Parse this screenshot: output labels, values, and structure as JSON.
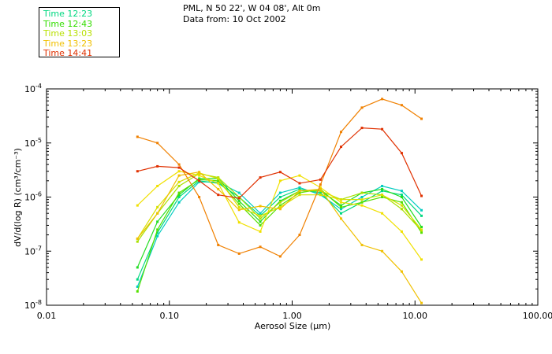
{
  "header": {
    "location": "PML, N 50 22', W 04 08', Alt 0m",
    "date": "Data from: 10 Oct 2002"
  },
  "chart_data": {
    "type": "line",
    "xscale": "log",
    "yscale": "log",
    "xlabel": "Aerosol Size (μm)",
    "ylabel": "dV/d(log R) (cm³/cm⁻³)",
    "xlim": [
      0.01,
      100
    ],
    "ylim": [
      1e-08,
      0.0001
    ],
    "xticks": [
      {
        "value": 0.01,
        "label": "0.01"
      },
      {
        "value": 0.1,
        "label": "0.10"
      },
      {
        "value": 1,
        "label": "1.00"
      },
      {
        "value": 10,
        "label": "10.00"
      },
      {
        "value": 100,
        "label": "100.00"
      }
    ],
    "yticks": [
      {
        "value": 1e-08,
        "base": "10",
        "exp": "-8"
      },
      {
        "value": 1e-07,
        "base": "10",
        "exp": "-7"
      },
      {
        "value": 1e-06,
        "base": "10",
        "exp": "-6"
      },
      {
        "value": 1e-05,
        "base": "10",
        "exp": "-5"
      },
      {
        "value": 0.0001,
        "base": "10",
        "exp": "-4"
      }
    ],
    "x": [
      0.055,
      0.08,
      0.12,
      0.175,
      0.25,
      0.37,
      0.55,
      0.8,
      1.15,
      1.7,
      2.5,
      3.7,
      5.4,
      7.8,
      11.3
    ],
    "series": [
      {
        "name": "Time 12:23",
        "color": "#00ccc0",
        "values": [
          2.2e-08,
          1.9e-07,
          8e-07,
          1.9e-06,
          1.9e-06,
          1.2e-06,
          5e-07,
          1.2e-06,
          1.5e-06,
          1.1e-06,
          6e-07,
          1e-06,
          1.6e-06,
          1.3e-06,
          5.7e-07
        ]
      },
      {
        "name": "Time 12:23",
        "color": "#00d880",
        "values": [
          3e-08,
          2.2e-07,
          1e-06,
          2e-06,
          1.8e-06,
          1e-06,
          4.5e-07,
          1e-06,
          1.4e-06,
          1.2e-06,
          5e-07,
          8e-07,
          1.3e-06,
          1.1e-06,
          4.5e-07
        ]
      },
      {
        "name": "Time 12:43",
        "color": "#22dd22",
        "values": [
          5e-08,
          3.5e-07,
          1.1e-06,
          2.2e-06,
          2.2e-06,
          8.5e-07,
          3.5e-07,
          8.5e-07,
          1.3e-06,
          1.3e-06,
          7e-07,
          1.2e-06,
          1.4e-06,
          1e-06,
          2.8e-07
        ]
      },
      {
        "name": "Time 12:43",
        "color": "#55e000",
        "values": [
          1.8e-08,
          2.5e-07,
          1.2e-06,
          2.1e-06,
          2e-06,
          7.5e-07,
          3e-07,
          7e-07,
          1.2e-06,
          1.4e-06,
          6.5e-07,
          8e-07,
          1e-06,
          8e-07,
          2.2e-07
        ]
      },
      {
        "name": "Time 13:03",
        "color": "#a8e000",
        "values": [
          1.5e-07,
          5e-07,
          1.6e-06,
          2.7e-06,
          2.3e-06,
          1e-06,
          4e-07,
          8e-07,
          1.3e-06,
          1.3e-06,
          9e-07,
          1.2e-06,
          1.1e-06,
          6e-07,
          2.4e-07
        ]
      },
      {
        "name": "Time 13:03",
        "color": "#d8e000",
        "values": [
          1.7e-07,
          6.5e-07,
          1.9e-06,
          2.8e-06,
          2.2e-06,
          6.5e-07,
          4.5e-07,
          6.5e-07,
          1.1e-06,
          1.1e-06,
          9e-07,
          9e-07,
          1.1e-06,
          7e-07,
          2.5e-07
        ]
      },
      {
        "name": "Time 13:23",
        "color": "#f0e000",
        "values": [
          7e-07,
          1.6e-06,
          3e-06,
          2.5e-06,
          1.8e-06,
          3.4e-07,
          2.3e-07,
          2e-06,
          2.5e-06,
          1.5e-06,
          8e-07,
          7e-07,
          5e-07,
          2.3e-07,
          7e-08
        ]
      },
      {
        "name": "Time 13:23",
        "color": "#f0c000",
        "values": [
          1.7e-07,
          5e-07,
          2.5e-06,
          2.9e-06,
          1.4e-06,
          5.8e-07,
          6.8e-07,
          6e-07,
          1.3e-06,
          1.4e-06,
          4e-07,
          1.3e-07,
          1e-07,
          4.2e-08,
          1.1e-08
        ]
      },
      {
        "name": "Time 14:41",
        "color": "#f08000",
        "values": [
          1.3e-05,
          1e-05,
          4e-06,
          1e-06,
          1.3e-07,
          9e-08,
          1.2e-07,
          8e-08,
          2e-07,
          1.7e-06,
          1.6e-05,
          4.5e-05,
          6.5e-05,
          5e-05,
          2.8e-05
        ]
      },
      {
        "name": "Time 14:41",
        "color": "#e03000",
        "values": [
          3e-06,
          3.7e-06,
          3.5e-06,
          2e-06,
          1.1e-06,
          9.5e-07,
          2.3e-06,
          2.9e-06,
          1.8e-06,
          2.1e-06,
          8.5e-06,
          1.9e-05,
          1.8e-05,
          6.5e-06,
          1.05e-06
        ]
      }
    ],
    "legend": [
      {
        "label": "Time 12:23",
        "color": "#00d880"
      },
      {
        "label": "Time 12:43",
        "color": "#33dd00"
      },
      {
        "label": "Time 13:03",
        "color": "#b8e000"
      },
      {
        "label": "Time 13:23",
        "color": "#f0c000"
      },
      {
        "label": "Time 14:41",
        "color": "#e03000"
      }
    ],
    "legend_position": "top-left"
  }
}
